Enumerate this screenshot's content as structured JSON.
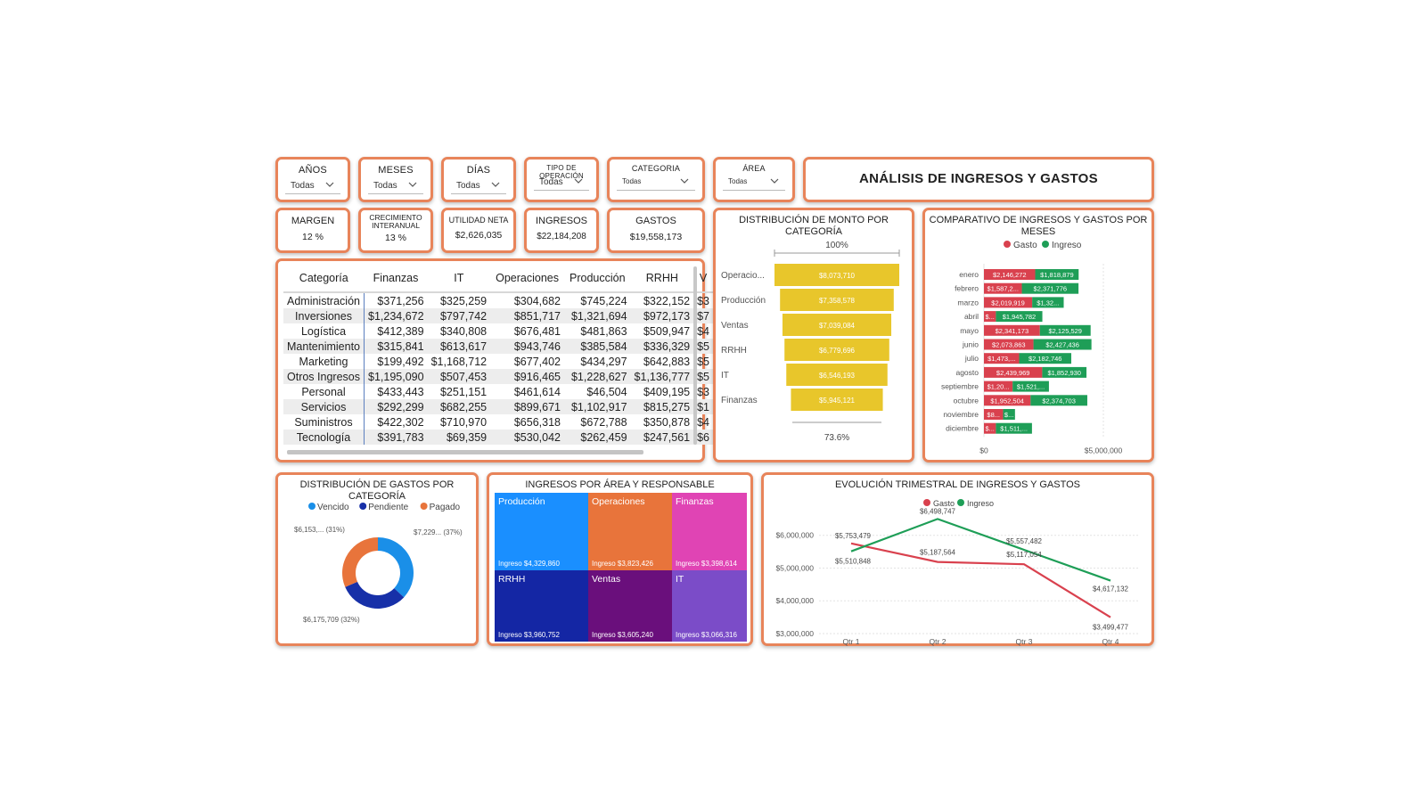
{
  "slicers": [
    {
      "title": "AÑOS",
      "value": "Todas"
    },
    {
      "title": "MESES",
      "value": "Todas"
    },
    {
      "title": "DÍAS",
      "value": "Todas"
    },
    {
      "title": "TIPO DE OPERACIÓN",
      "value": "Todas"
    },
    {
      "title": "CATEGORIA",
      "value": "Todas"
    },
    {
      "title": "ÁREA",
      "value": "Todas"
    }
  ],
  "header": {
    "title": "ANÁLISIS DE INGRESOS Y GASTOS"
  },
  "kpis": [
    {
      "title": "MARGEN",
      "value": "12 %"
    },
    {
      "title": "CRECIMIENTO INTERANUAL",
      "value": "13 %"
    },
    {
      "title": "UTILIDAD NETA",
      "value": "$2,626,035"
    },
    {
      "title": "INGRESOS",
      "value": "$22,184,208"
    },
    {
      "title": "GASTOS",
      "value": "$19,558,173"
    }
  ],
  "matrix": {
    "headers": [
      "Categoría",
      "Finanzas",
      "IT",
      "Operaciones",
      "Producción",
      "RRHH",
      "V"
    ],
    "rows": [
      {
        "cat": "Administración",
        "vals": [
          "$371,256",
          "$325,259",
          "$304,682",
          "$745,224",
          "$322,152",
          "$3"
        ]
      },
      {
        "cat": "Inversiones",
        "vals": [
          "$1,234,672",
          "$797,742",
          "$851,717",
          "$1,321,694",
          "$972,173",
          "$7"
        ]
      },
      {
        "cat": "Logística",
        "vals": [
          "$412,389",
          "$340,808",
          "$676,481",
          "$481,863",
          "$509,947",
          "$4"
        ]
      },
      {
        "cat": "Mantenimiento",
        "vals": [
          "$315,841",
          "$613,617",
          "$943,746",
          "$385,584",
          "$336,329",
          "$5"
        ]
      },
      {
        "cat": "Marketing",
        "vals": [
          "$199,492",
          "$1,168,712",
          "$677,402",
          "$434,297",
          "$642,883",
          "$5"
        ]
      },
      {
        "cat": "Otros Ingresos",
        "vals": [
          "$1,195,090",
          "$507,453",
          "$916,465",
          "$1,228,627",
          "$1,136,777",
          "$5"
        ]
      },
      {
        "cat": "Personal",
        "vals": [
          "$433,443",
          "$251,151",
          "$461,614",
          "$46,504",
          "$409,195",
          "$3"
        ]
      },
      {
        "cat": "Servicios",
        "vals": [
          "$292,299",
          "$682,255",
          "$899,671",
          "$1,102,917",
          "$815,275",
          "$1"
        ]
      },
      {
        "cat": "Suministros",
        "vals": [
          "$422,302",
          "$710,970",
          "$656,318",
          "$672,788",
          "$350,878",
          "$4"
        ]
      },
      {
        "cat": "Tecnología",
        "vals": [
          "$391,783",
          "$69,359",
          "$530,042",
          "$262,459",
          "$247,561",
          "$6"
        ]
      }
    ]
  },
  "funnel": {
    "title": "DISTRIBUCIÓN DE MONTO POR CATEGORÍA",
    "top_pct": "100%",
    "bottom_pct": "73.6%",
    "color": "#e8c62b"
  },
  "comparativo": {
    "title": "COMPARATIVO DE INGRESOS Y GASTOS POR MESES",
    "legend": [
      "Gasto",
      "Ingreso"
    ],
    "axis": [
      "$0",
      "$5,000,000"
    ],
    "colors": {
      "gasto": "#d9414e",
      "ingreso": "#1e9e57"
    }
  },
  "donut": {
    "title": "DISTRIBUCIÓN DE GASTOS POR CATEGORÍA",
    "legend": [
      "Vencido",
      "Pendiente",
      "Pagado"
    ],
    "labels": [
      "$7,229... (37%)",
      "$6,175,709 (32%)",
      "$6,153,... (31%)"
    ],
    "colors": [
      "#1a8fe8",
      "#1730a8",
      "#e8743b"
    ]
  },
  "treemap": {
    "title": "INGRESOS POR ÁREA Y RESPONSABLE",
    "cells": [
      {
        "label": "Producción",
        "value": "Ingreso $4,329,860",
        "color": "#1a8fff"
      },
      {
        "label": "Operaciones",
        "value": "Ingreso $3,823,426",
        "color": "#e8743b"
      },
      {
        "label": "Finanzas",
        "value": "Ingreso $3,398,614",
        "color": "#e044b4"
      },
      {
        "label": "RRHH",
        "value": "Ingreso $3,960,752",
        "color": "#1426a4"
      },
      {
        "label": "Ventas",
        "value": "Ingreso $3,605,240",
        "color": "#6a0f7c"
      },
      {
        "label": "IT",
        "value": "Ingreso $3,066,316",
        "color": "#7b4cc8"
      }
    ]
  },
  "evolucion": {
    "title": "EVOLUCIÓN TRIMESTRAL DE INGRESOS Y GASTOS",
    "legend": [
      "Gasto",
      "Ingreso"
    ],
    "colors": {
      "gasto": "#d9414e",
      "ingreso": "#1e9e57"
    }
  },
  "chart_data": [
    {
      "type": "bar",
      "title": "DISTRIBUCIÓN DE MONTO POR CATEGORÍA",
      "categories": [
        "Operacio...",
        "Producción",
        "Ventas",
        "RRHH",
        "IT",
        "Finanzas"
      ],
      "values": [
        8073710,
        7358578,
        7039084,
        6779696,
        6546193,
        5945121
      ],
      "labels": [
        "$8,073,710",
        "$7,358,578",
        "$7,039,084",
        "$6,779,696",
        "$6,546,193",
        "$5,945,121"
      ]
    },
    {
      "type": "bar",
      "title": "COMPARATIVO DE INGRESOS Y GASTOS POR MESES",
      "categories": [
        "enero",
        "febrero",
        "marzo",
        "abril",
        "mayo",
        "junio",
        "julio",
        "agosto",
        "septiembre",
        "octubre",
        "noviembre",
        "diciembre"
      ],
      "series": [
        {
          "name": "Gasto",
          "values": [
            2146272,
            1587200,
            2019919,
            500000,
            2341173,
            2073863,
            1473000,
            2439969,
            1200000,
            1952504,
            800000,
            500000
          ],
          "labels": [
            "$2,146,272",
            "$1,587,2...",
            "$2,019,919",
            "$...",
            "$2,341,173",
            "$2,073,863",
            "$1,473,...",
            "$2,439,969",
            "$1,20...",
            "$1,952,504",
            "$8...",
            "$..."
          ]
        },
        {
          "name": "Ingreso",
          "values": [
            1818879,
            2371776,
            1320000,
            1945782,
            2125529,
            2427436,
            2182746,
            1852930,
            1521000,
            2374703,
            500000,
            1511000
          ],
          "labels": [
            "$1,818,879",
            "$2,371,776",
            "$1,32...",
            "$1,945,782",
            "$2,125,529",
            "$2,427,436",
            "$2,182,746",
            "$1,852,930",
            "$1,521,...",
            "$2,374,703",
            "$...",
            "$1,511,..."
          ]
        }
      ],
      "xlim": [
        0,
        5000000
      ]
    },
    {
      "type": "pie",
      "title": "DISTRIBUCIÓN DE GASTOS POR CATEGORÍA",
      "categories": [
        "Vencido",
        "Pendiente",
        "Pagado"
      ],
      "values": [
        7229000,
        6175709,
        6153000
      ],
      "percent": [
        37,
        32,
        31
      ]
    },
    {
      "type": "line",
      "title": "EVOLUCIÓN TRIMESTRAL DE INGRESOS Y GASTOS",
      "categories": [
        "Qtr 1",
        "Qtr 2",
        "Qtr 3",
        "Qtr 4"
      ],
      "series": [
        {
          "name": "Gasto",
          "values": [
            5753479,
            5187564,
            5117054,
            3499477
          ],
          "labels": [
            "$5,753,479",
            "$5,187,564",
            "$5,117,054",
            "$3,499,477"
          ]
        },
        {
          "name": "Ingreso",
          "values": [
            5510848,
            6498747,
            5557482,
            4617132
          ],
          "labels": [
            "$5,510,848",
            "$6,498,747",
            "$5,557,482",
            "$4,617,132"
          ]
        }
      ],
      "yticks": [
        "$3,000,000",
        "$4,000,000",
        "$5,000,000",
        "$6,000,000"
      ],
      "ylim": [
        3000000,
        6700000
      ]
    }
  ]
}
